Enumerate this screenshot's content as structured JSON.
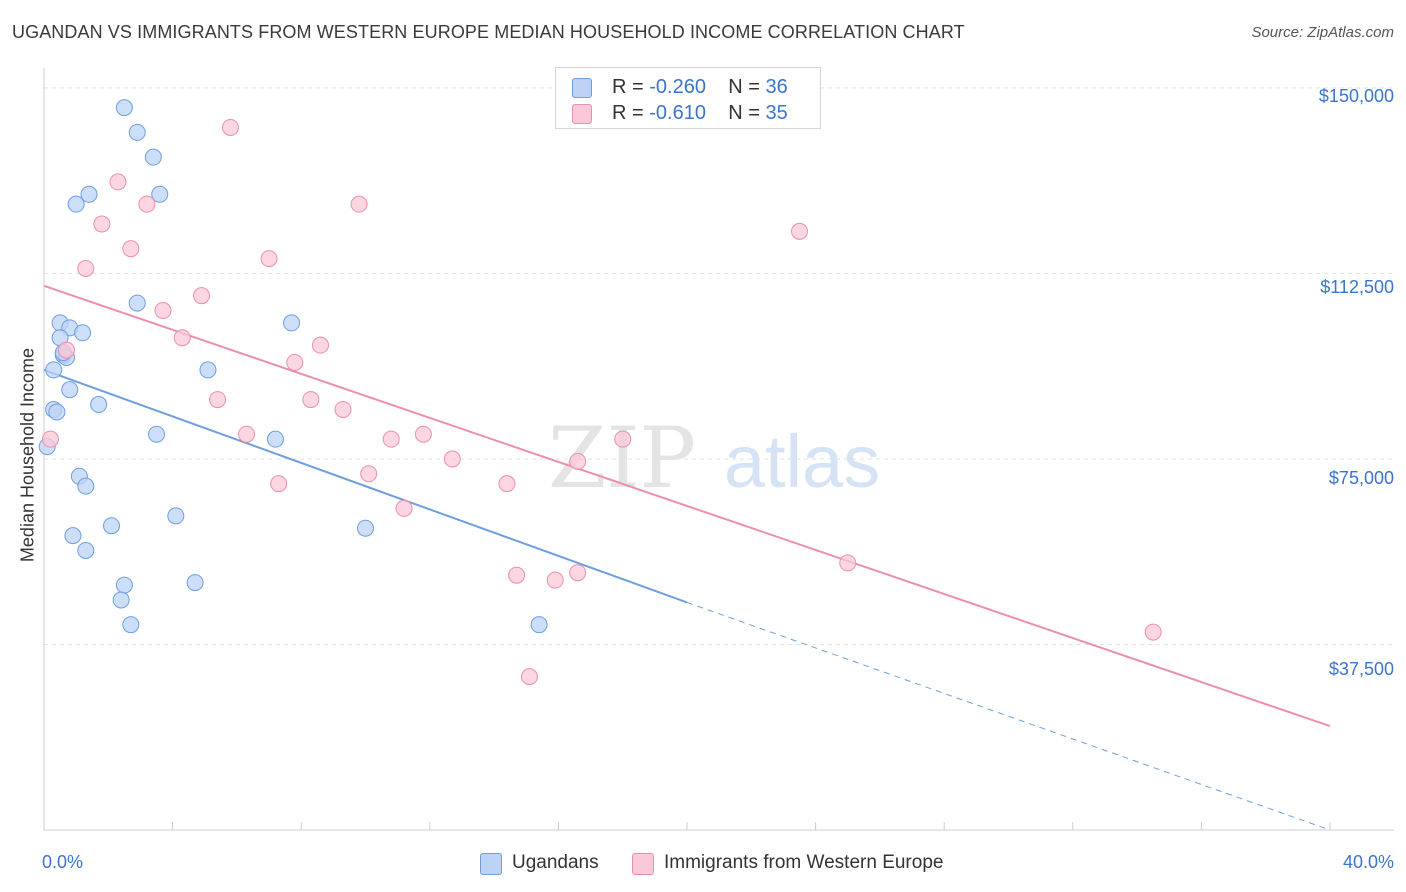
{
  "title": "UGANDAN VS IMMIGRANTS FROM WESTERN EUROPE MEDIAN HOUSEHOLD INCOME CORRELATION CHART",
  "source": "Source: ZipAtlas.com",
  "watermark": {
    "zip": "ZIP",
    "atlas": "atlas"
  },
  "stats": [
    {
      "r_label": "R =",
      "r_value": "-0.260",
      "n_label": "N =",
      "n_value": "36",
      "color": "#6d9fdf"
    },
    {
      "r_label": "R =",
      "r_value": "-0.610",
      "n_label": "N =",
      "n_value": "35",
      "color": "#ec8fae"
    }
  ],
  "legend": {
    "ugandans": "Ugandans",
    "western_europe": "Immigrants from Western Europe"
  },
  "chart_data": {
    "type": "scatter",
    "title": "UGANDAN VS IMMIGRANTS FROM WESTERN EUROPE MEDIAN HOUSEHOLD INCOME CORRELATION CHART",
    "xlabel": "",
    "ylabel": "Median Household Income",
    "xlim": [
      0,
      40
    ],
    "ylim": [
      0,
      152000
    ],
    "x_tick_labels": [
      "0.0%",
      "40.0%"
    ],
    "y_tick_labels": [
      "$150,000",
      "$112,500",
      "$75,000",
      "$37,500"
    ],
    "y_ticks": [
      150000,
      112500,
      75000,
      37500
    ],
    "grid": true,
    "legend_position": "bottom",
    "series": [
      {
        "name": "Ugandans",
        "color": "#6d9fdf",
        "fill": "#bcd3f5",
        "points": [
          [
            2.5,
            146000
          ],
          [
            2.9,
            141000
          ],
          [
            3.4,
            136000
          ],
          [
            1.4,
            128500
          ],
          [
            3.6,
            128500
          ],
          [
            1.0,
            126500
          ],
          [
            2.9,
            106500
          ],
          [
            7.7,
            102500
          ],
          [
            0.5,
            102500
          ],
          [
            0.8,
            101500
          ],
          [
            1.2,
            100500
          ],
          [
            0.5,
            99500
          ],
          [
            0.6,
            96000
          ],
          [
            0.7,
            95500
          ],
          [
            5.1,
            93000
          ],
          [
            0.3,
            93000
          ],
          [
            0.8,
            89000
          ],
          [
            1.7,
            86000
          ],
          [
            0.3,
            85000
          ],
          [
            0.4,
            84500
          ],
          [
            3.5,
            80000
          ],
          [
            7.2,
            79000
          ],
          [
            0.1,
            77500
          ],
          [
            1.1,
            71500
          ],
          [
            1.3,
            69500
          ],
          [
            4.1,
            63500
          ],
          [
            2.1,
            61500
          ],
          [
            10.0,
            61000
          ],
          [
            0.9,
            59500
          ],
          [
            1.3,
            56500
          ],
          [
            2.5,
            49500
          ],
          [
            4.7,
            50000
          ],
          [
            2.4,
            46500
          ],
          [
            2.7,
            41500
          ],
          [
            15.4,
            41500
          ],
          [
            0.6,
            96500
          ]
        ]
      },
      {
        "name": "Immigrants from Western Europe",
        "color": "#ec8fae",
        "fill": "#fbc8d7",
        "points": [
          [
            5.8,
            142000
          ],
          [
            2.3,
            131000
          ],
          [
            3.2,
            126500
          ],
          [
            9.8,
            126500
          ],
          [
            1.8,
            122500
          ],
          [
            23.5,
            121000
          ],
          [
            2.7,
            117500
          ],
          [
            7.0,
            115500
          ],
          [
            1.3,
            113500
          ],
          [
            4.9,
            108000
          ],
          [
            3.7,
            105000
          ],
          [
            4.3,
            99500
          ],
          [
            8.6,
            98000
          ],
          [
            7.8,
            94500
          ],
          [
            0.7,
            97000
          ],
          [
            5.4,
            87000
          ],
          [
            8.3,
            87000
          ],
          [
            9.3,
            85000
          ],
          [
            6.3,
            80000
          ],
          [
            11.8,
            80000
          ],
          [
            10.8,
            79000
          ],
          [
            18.0,
            79000
          ],
          [
            0.2,
            79000
          ],
          [
            12.7,
            75000
          ],
          [
            16.6,
            74500
          ],
          [
            10.1,
            72000
          ],
          [
            7.3,
            70000
          ],
          [
            14.4,
            70000
          ],
          [
            11.2,
            65000
          ],
          [
            25.0,
            54000
          ],
          [
            14.7,
            51500
          ],
          [
            16.6,
            52000
          ],
          [
            15.9,
            50500
          ],
          [
            34.5,
            40000
          ],
          [
            15.1,
            31000
          ]
        ]
      }
    ],
    "trend_lines": [
      {
        "series": "Ugandans",
        "x0": 0.0,
        "y0": 93000,
        "x1": 20.0,
        "y1": 46000,
        "dashed_to_x": 40.0,
        "dashed_to_y": 0
      },
      {
        "series": "Immigrants from Western Europe",
        "x0": 0.0,
        "y0": 110000,
        "x1": 40.0,
        "y1": 21000
      }
    ]
  }
}
